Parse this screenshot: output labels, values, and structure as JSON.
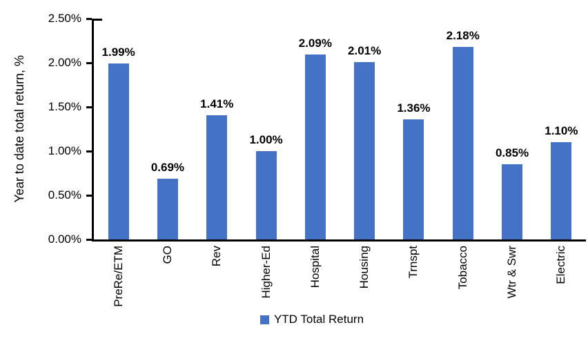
{
  "chart_data": {
    "type": "bar",
    "title": "",
    "categories": [
      "PreRe/ETM",
      "GO",
      "Rev",
      "Higher-Ed",
      "Hospital",
      "Housing",
      "Trnspt",
      "Tobacco",
      "Wtr & Swr",
      "Electric"
    ],
    "values": [
      1.99,
      0.69,
      1.41,
      1.0,
      2.09,
      2.01,
      1.36,
      2.18,
      0.85,
      1.1
    ],
    "data_labels": [
      "1.99%",
      "0.69%",
      "1.41%",
      "1.00%",
      "2.09%",
      "2.01%",
      "1.36%",
      "2.18%",
      "0.85%",
      "1.10%"
    ],
    "xlabel": "",
    "ylabel": "Year to date total return, %",
    "ylim": [
      0,
      2.5
    ],
    "y_ticks": [
      0.0,
      0.5,
      1.0,
      1.5,
      2.0,
      2.5
    ],
    "y_tick_labels": [
      "0.00%",
      "0.50%",
      "1.00%",
      "1.50%",
      "2.00%",
      "2.50%"
    ],
    "grid": false,
    "legend_position": "bottom",
    "legend_label": "YTD Total Return",
    "bar_color": "#4472C4",
    "axis_color": "#000000",
    "background_color": "#FFFFFF"
  }
}
